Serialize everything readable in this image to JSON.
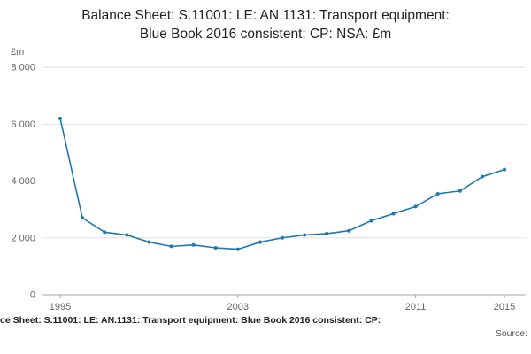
{
  "title": {
    "line1": "Balance Sheet: S.11001: LE: AN.1131: Transport equipment:",
    "line2": "Blue Book 2016 consistent: CP: NSA: £m"
  },
  "footer": {
    "caption": "ce Sheet: S.11001: LE: AN.1131: Transport equipment: Blue Book 2016 consistent: CP:",
    "source_label": "Source:"
  },
  "chart_data": {
    "type": "line",
    "title": "Balance Sheet: S.11001: LE: AN.1131: Transport equipment: Blue Book 2016 consistent: CP: NSA: £m",
    "unit_label": "£m",
    "xlabel": "",
    "ylabel": "£m",
    "x": [
      1995,
      1996,
      1997,
      1998,
      1999,
      2000,
      2001,
      2002,
      2003,
      2004,
      2005,
      2006,
      2007,
      2008,
      2009,
      2010,
      2011,
      2012,
      2013,
      2014,
      2015
    ],
    "values": [
      6200,
      2700,
      2200,
      2100,
      1850,
      1700,
      1750,
      1650,
      1600,
      1850,
      2000,
      2100,
      2150,
      2250,
      2600,
      2850,
      3100,
      3550,
      3650,
      4150,
      4400
    ],
    "xlim": [
      1995,
      2015
    ],
    "ylim": [
      0,
      8000
    ],
    "y_ticks": [
      0,
      2000,
      4000,
      6000,
      8000
    ],
    "y_tick_labels": [
      "0",
      "2 000",
      "4 000",
      "6 000",
      "8 000"
    ],
    "x_ticks": [
      1995,
      2003,
      2011,
      2015
    ],
    "x_tick_labels": [
      "1995",
      "2003",
      "2011",
      "2015"
    ],
    "line_color": "#1f77b4",
    "grid": true,
    "legend_position": "none"
  }
}
